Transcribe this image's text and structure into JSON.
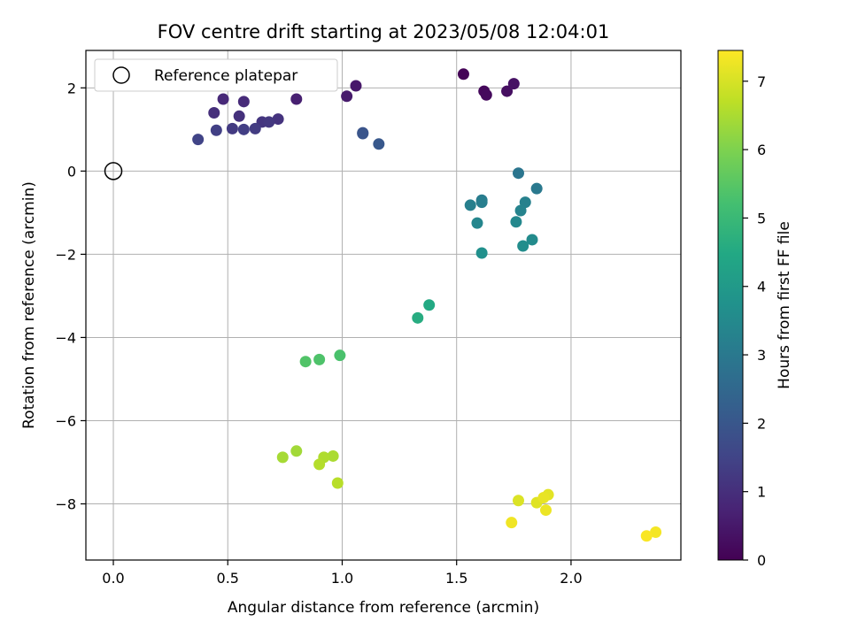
{
  "chart_data": {
    "type": "scatter",
    "title": "FOV centre drift starting at 2023/05/08 12:04:01",
    "xlabel": "Angular distance from reference (arcmin)",
    "ylabel": "Rotation from reference (arcmin)",
    "xlim": [
      -0.12,
      2.48
    ],
    "ylim": [
      -9.35,
      2.9
    ],
    "xticks": [
      0.0,
      0.5,
      1.0,
      1.5,
      2.0
    ],
    "xtick_labels": [
      "0.0",
      "0.5",
      "1.0",
      "1.5",
      "2.0"
    ],
    "yticks": [
      -8,
      -6,
      -4,
      -2,
      0,
      2
    ],
    "ytick_labels": [
      "−8",
      "−6",
      "−4",
      "−2",
      "0",
      "2"
    ],
    "grid": true,
    "legend": {
      "placement": "top-left",
      "entries": [
        "Reference platepar"
      ]
    },
    "reference_point": {
      "x": 0.0,
      "y": 0.0
    },
    "colorbar": {
      "label": "Hours from first FF file",
      "colormap": "viridis",
      "range": [
        0,
        7.45
      ],
      "ticks": [
        0,
        1,
        2,
        3,
        4,
        5,
        6,
        7
      ],
      "tick_labels": [
        "0",
        "1",
        "2",
        "3",
        "4",
        "5",
        "6",
        "7"
      ]
    },
    "points": [
      {
        "x": 1.53,
        "y": 2.33,
        "t": 0.05
      },
      {
        "x": 1.62,
        "y": 1.92,
        "t": 0.15
      },
      {
        "x": 1.63,
        "y": 1.83,
        "t": 0.2
      },
      {
        "x": 1.72,
        "y": 1.92,
        "t": 0.3
      },
      {
        "x": 1.75,
        "y": 2.1,
        "t": 0.35
      },
      {
        "x": 1.06,
        "y": 2.05,
        "t": 0.5
      },
      {
        "x": 1.02,
        "y": 1.8,
        "t": 0.55
      },
      {
        "x": 0.8,
        "y": 1.73,
        "t": 0.65
      },
      {
        "x": 0.48,
        "y": 1.73,
        "t": 0.85
      },
      {
        "x": 0.57,
        "y": 1.67,
        "t": 0.9
      },
      {
        "x": 0.44,
        "y": 1.4,
        "t": 1.0
      },
      {
        "x": 0.55,
        "y": 1.32,
        "t": 1.05
      },
      {
        "x": 0.72,
        "y": 1.25,
        "t": 1.1
      },
      {
        "x": 0.65,
        "y": 1.18,
        "t": 1.15
      },
      {
        "x": 0.68,
        "y": 1.18,
        "t": 1.2
      },
      {
        "x": 0.52,
        "y": 1.02,
        "t": 1.25
      },
      {
        "x": 0.62,
        "y": 1.02,
        "t": 1.3
      },
      {
        "x": 0.57,
        "y": 1.0,
        "t": 1.35
      },
      {
        "x": 0.45,
        "y": 0.98,
        "t": 1.4
      },
      {
        "x": 0.37,
        "y": 0.76,
        "t": 1.5
      },
      {
        "x": 1.09,
        "y": 0.92,
        "t": 1.9
      },
      {
        "x": 1.09,
        "y": 0.9,
        "t": 1.95
      },
      {
        "x": 1.16,
        "y": 0.65,
        "t": 2.05
      },
      {
        "x": 1.77,
        "y": -0.05,
        "t": 2.9
      },
      {
        "x": 1.85,
        "y": -0.42,
        "t": 3.0
      },
      {
        "x": 1.61,
        "y": -0.7,
        "t": 3.1
      },
      {
        "x": 1.61,
        "y": -0.75,
        "t": 3.15
      },
      {
        "x": 1.56,
        "y": -0.82,
        "t": 3.2
      },
      {
        "x": 1.8,
        "y": -0.75,
        "t": 3.25
      },
      {
        "x": 1.78,
        "y": -0.95,
        "t": 3.3
      },
      {
        "x": 1.59,
        "y": -1.25,
        "t": 3.4
      },
      {
        "x": 1.76,
        "y": -1.22,
        "t": 3.45
      },
      {
        "x": 1.83,
        "y": -1.65,
        "t": 3.55
      },
      {
        "x": 1.79,
        "y": -1.8,
        "t": 3.6
      },
      {
        "x": 1.61,
        "y": -1.97,
        "t": 3.7
      },
      {
        "x": 1.38,
        "y": -3.22,
        "t": 4.5
      },
      {
        "x": 1.33,
        "y": -3.53,
        "t": 4.6
      },
      {
        "x": 0.99,
        "y": -4.43,
        "t": 5.3
      },
      {
        "x": 0.9,
        "y": -4.53,
        "t": 5.35
      },
      {
        "x": 0.84,
        "y": -4.58,
        "t": 5.4
      },
      {
        "x": 0.8,
        "y": -6.73,
        "t": 6.4
      },
      {
        "x": 0.74,
        "y": -6.88,
        "t": 6.45
      },
      {
        "x": 0.96,
        "y": -6.85,
        "t": 6.5
      },
      {
        "x": 0.92,
        "y": -6.88,
        "t": 6.55
      },
      {
        "x": 0.9,
        "y": -7.05,
        "t": 6.6
      },
      {
        "x": 0.98,
        "y": -7.5,
        "t": 6.65
      },
      {
        "x": 1.77,
        "y": -7.92,
        "t": 7.05
      },
      {
        "x": 1.85,
        "y": -7.97,
        "t": 7.1
      },
      {
        "x": 1.9,
        "y": -7.78,
        "t": 7.15
      },
      {
        "x": 1.88,
        "y": -7.85,
        "t": 7.2
      },
      {
        "x": 1.89,
        "y": -8.15,
        "t": 7.25
      },
      {
        "x": 1.74,
        "y": -8.45,
        "t": 7.3
      },
      {
        "x": 2.37,
        "y": -8.68,
        "t": 7.35
      },
      {
        "x": 2.33,
        "y": -8.77,
        "t": 7.4
      }
    ]
  }
}
